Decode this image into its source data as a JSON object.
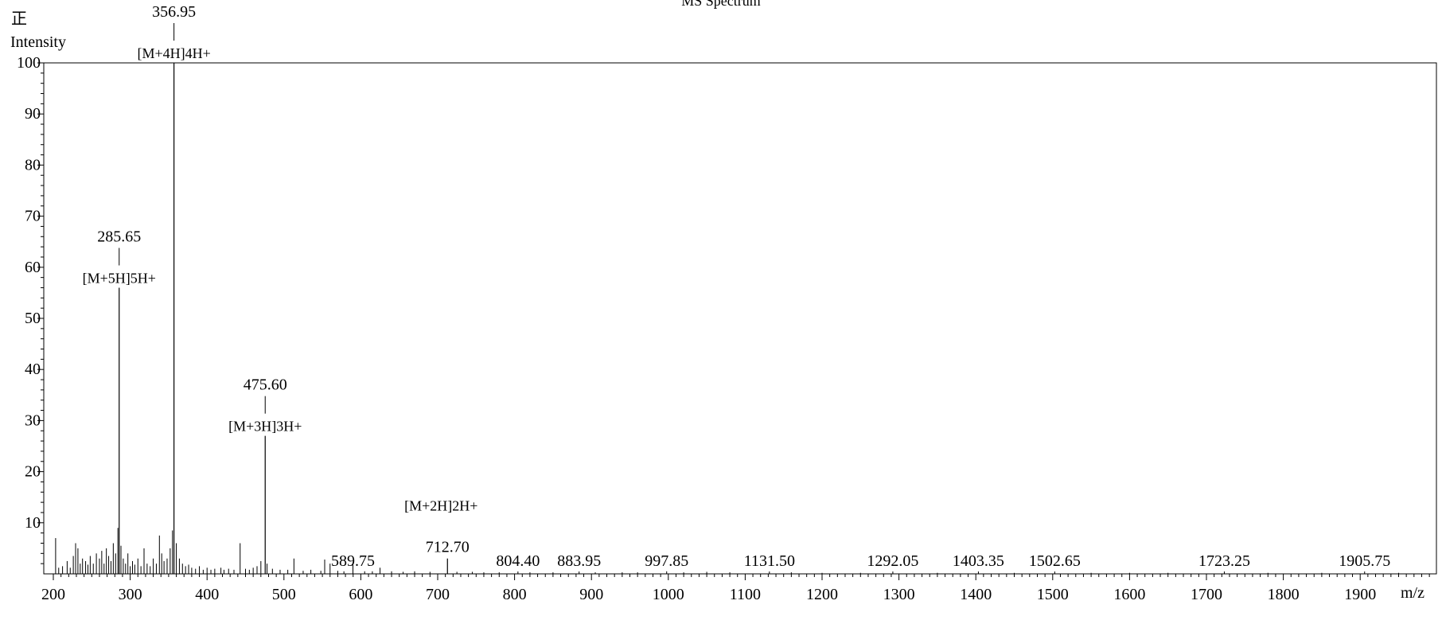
{
  "chart_data": {
    "type": "bar",
    "title": "MS Spectrum",
    "polarity": "正",
    "ylabel": "Intensity",
    "xlabel": "m/z",
    "xlim": [
      200,
      2000
    ],
    "ylim": [
      0,
      100
    ],
    "xticks": [
      200,
      300,
      400,
      500,
      600,
      700,
      800,
      900,
      1000,
      1100,
      1200,
      1300,
      1400,
      1500,
      1600,
      1700,
      1800,
      1900
    ],
    "yticks": [
      10,
      20,
      30,
      40,
      50,
      60,
      70,
      80,
      90,
      100
    ],
    "major_peaks": [
      {
        "mz": 285.65,
        "intensity": 56,
        "label": "285.65",
        "ion": "[M+5H]5H+"
      },
      {
        "mz": 356.95,
        "intensity": 100,
        "label": "356.95",
        "ion": "[M+4H]4H+"
      },
      {
        "mz": 475.6,
        "intensity": 27,
        "label": "475.60",
        "ion": "[M+3H]3H+"
      },
      {
        "mz": 712.7,
        "intensity": 3,
        "label": "712.70",
        "ion": "[M+2H]2H+"
      }
    ],
    "labeled_peaks": [
      {
        "mz": 589.75,
        "intensity": 1.8,
        "label": "589.75"
      },
      {
        "mz": 804.4,
        "intensity": 0.4,
        "label": "804.40"
      },
      {
        "mz": 883.95,
        "intensity": 0.4,
        "label": "883.95"
      },
      {
        "mz": 997.85,
        "intensity": 0.5,
        "label": "997.85"
      },
      {
        "mz": 1131.5,
        "intensity": 0.3,
        "label": "1131.50"
      },
      {
        "mz": 1292.05,
        "intensity": 0.3,
        "label": "1292.05"
      },
      {
        "mz": 1403.35,
        "intensity": 0.3,
        "label": "1403.35"
      },
      {
        "mz": 1502.65,
        "intensity": 0.3,
        "label": "1502.65"
      },
      {
        "mz": 1723.25,
        "intensity": 0.2,
        "label": "1723.25"
      },
      {
        "mz": 1905.75,
        "intensity": 0.2,
        "label": "1905.75"
      }
    ],
    "minor_peaks": [
      [
        203,
        7
      ],
      [
        207,
        1.2
      ],
      [
        212,
        1.5
      ],
      [
        218,
        2.5
      ],
      [
        222,
        1.2
      ],
      [
        226,
        3.5
      ],
      [
        229,
        6
      ],
      [
        232,
        5
      ],
      [
        235,
        2
      ],
      [
        238,
        3
      ],
      [
        242,
        2.5
      ],
      [
        245,
        1.8
      ],
      [
        248,
        3.5
      ],
      [
        252,
        2
      ],
      [
        256,
        4
      ],
      [
        260,
        3
      ],
      [
        263,
        4.5
      ],
      [
        266,
        2
      ],
      [
        269,
        5
      ],
      [
        272,
        3.5
      ],
      [
        275,
        2.5
      ],
      [
        278,
        6
      ],
      [
        281,
        4
      ],
      [
        284,
        9
      ],
      [
        288,
        5.5
      ],
      [
        291,
        3
      ],
      [
        294,
        2
      ],
      [
        297,
        4
      ],
      [
        300,
        1.5
      ],
      [
        303,
        2.5
      ],
      [
        306,
        1.8
      ],
      [
        310,
        3
      ],
      [
        314,
        1.5
      ],
      [
        318,
        5
      ],
      [
        322,
        2
      ],
      [
        326,
        1.5
      ],
      [
        330,
        3
      ],
      [
        334,
        2
      ],
      [
        338,
        7.5
      ],
      [
        341,
        4
      ],
      [
        344,
        2.5
      ],
      [
        348,
        3
      ],
      [
        352,
        5
      ],
      [
        355,
        8.5
      ],
      [
        360,
        6
      ],
      [
        364,
        3
      ],
      [
        368,
        2
      ],
      [
        372,
        1.5
      ],
      [
        376,
        1.8
      ],
      [
        380,
        1.2
      ],
      [
        385,
        1
      ],
      [
        390,
        1.5
      ],
      [
        395,
        0.8
      ],
      [
        400,
        1.2
      ],
      [
        405,
        0.8
      ],
      [
        410,
        1
      ],
      [
        418,
        1.2
      ],
      [
        422,
        0.8
      ],
      [
        428,
        1
      ],
      [
        435,
        0.8
      ],
      [
        443,
        6
      ],
      [
        450,
        1
      ],
      [
        455,
        0.8
      ],
      [
        460,
        1.2
      ],
      [
        465,
        1.5
      ],
      [
        470,
        2.5
      ],
      [
        478,
        2
      ],
      [
        485,
        1
      ],
      [
        495,
        0.8
      ],
      [
        505,
        0.8
      ],
      [
        513,
        3
      ],
      [
        525,
        0.6
      ],
      [
        535,
        0.8
      ],
      [
        548,
        0.6
      ],
      [
        553,
        2.8
      ],
      [
        560,
        2
      ],
      [
        570,
        0.6
      ],
      [
        578,
        0.5
      ],
      [
        605,
        0.5
      ],
      [
        615,
        0.5
      ],
      [
        625,
        1.2
      ],
      [
        640,
        0.5
      ],
      [
        655,
        0.4
      ],
      [
        670,
        0.5
      ],
      [
        690,
        0.4
      ],
      [
        725,
        0.4
      ],
      [
        745,
        0.4
      ],
      [
        760,
        0.3
      ],
      [
        780,
        0.3
      ],
      [
        820,
        0.3
      ],
      [
        850,
        0.3
      ],
      [
        905,
        0.3
      ],
      [
        940,
        0.3
      ],
      [
        960,
        0.3
      ],
      [
        1020,
        0.3
      ],
      [
        1050,
        0.4
      ],
      [
        1080,
        0.3
      ],
      [
        1160,
        0.3
      ],
      [
        1200,
        0.2
      ],
      [
        1250,
        0.2
      ],
      [
        1350,
        0.2
      ],
      [
        1450,
        0.2
      ],
      [
        1550,
        0.2
      ],
      [
        1600,
        0.2
      ],
      [
        1650,
        0.2
      ],
      [
        1780,
        0.2
      ],
      [
        1850,
        0.2
      ],
      [
        1950,
        0.2
      ]
    ]
  }
}
